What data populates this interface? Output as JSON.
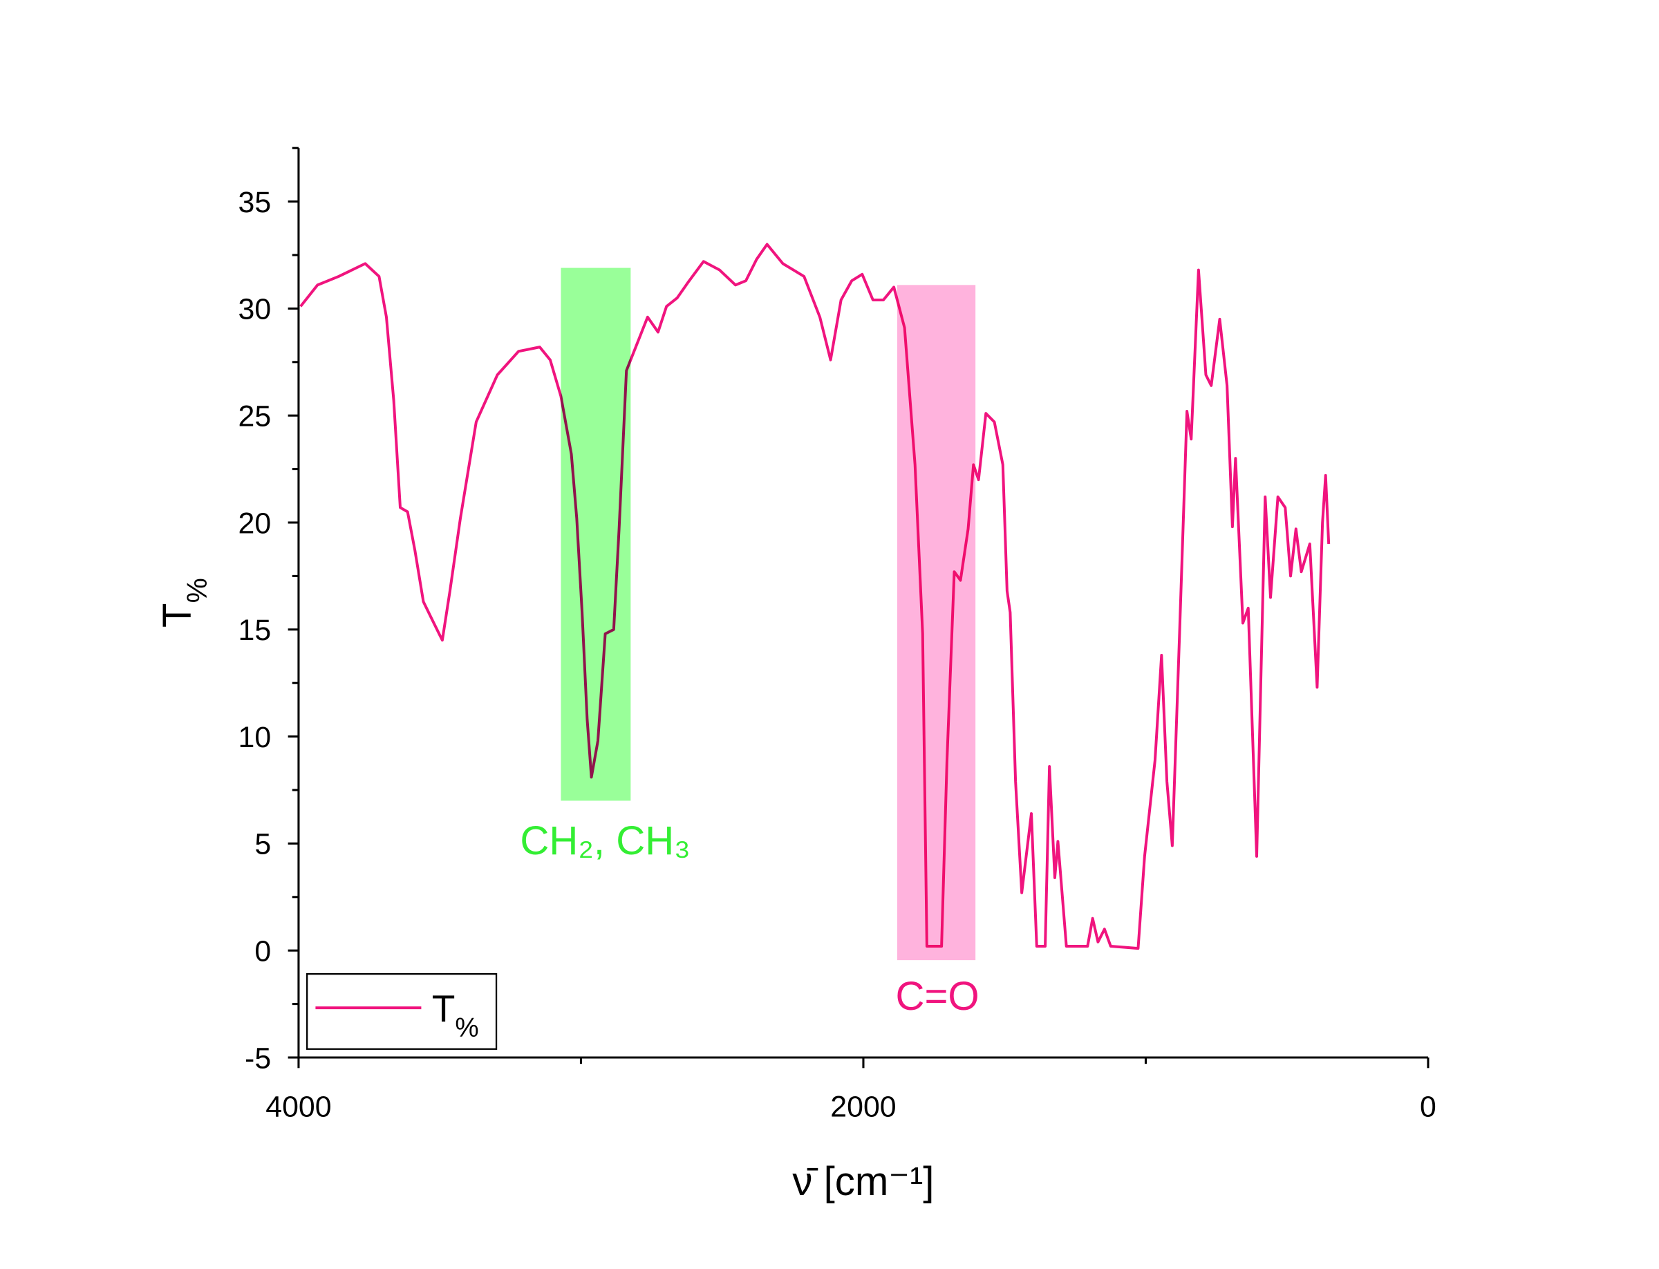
{
  "chart_data": {
    "type": "line",
    "x_label": "ν̄ [cm⁻¹]",
    "y_label": "T%",
    "x": [
      3993,
      3933,
      3858,
      3764,
      3715,
      3689,
      3663,
      3640,
      3614,
      3588,
      3558,
      3521,
      3491,
      3464,
      3427,
      3371,
      3296,
      3221,
      3146,
      3109,
      3071,
      3034,
      3015,
      2996,
      2978,
      2963,
      2940,
      2914,
      2884,
      2865,
      2839,
      2809,
      2764,
      2727,
      2697,
      2659,
      2622,
      2566,
      2509,
      2453,
      2416,
      2378,
      2341,
      2285,
      2210,
      2154,
      2116,
      2079,
      2041,
      2004,
      1966,
      1929,
      1892,
      1854,
      1817,
      1790,
      1775,
      1723,
      1704,
      1678,
      1656,
      1629,
      1610,
      1592,
      1566,
      1536,
      1506,
      1491,
      1480,
      1461,
      1439,
      1405,
      1386,
      1356,
      1341,
      1322,
      1311,
      1281,
      1206,
      1188,
      1169,
      1146,
      1124,
      1027,
      1004,
      967,
      944,
      925,
      906,
      880,
      854,
      839,
      813,
      787,
      768,
      738,
      712,
      693,
      682,
      656,
      637,
      607,
      577,
      558,
      532,
      506,
      487,
      468,
      449,
      419,
      393,
      374,
      363,
      352
    ],
    "series": [
      {
        "name": "T%",
        "color": "#f0147e",
        "values": [
          30.1,
          31.1,
          31.5,
          32.1,
          31.5,
          29.6,
          25.7,
          20.7,
          20.5,
          18.7,
          16.3,
          15.3,
          14.5,
          16.8,
          20.2,
          24.7,
          26.9,
          28.0,
          28.2,
          27.6,
          25.9,
          23.2,
          20.2,
          15.8,
          10.8,
          8.1,
          9.8,
          14.8,
          15.0,
          19.7,
          27.1,
          28.1,
          29.6,
          28.9,
          30.1,
          30.5,
          31.2,
          32.2,
          31.8,
          31.1,
          31.3,
          32.3,
          33.0,
          32.1,
          31.5,
          29.6,
          27.6,
          30.4,
          31.3,
          31.6,
          30.4,
          30.4,
          31.0,
          29.1,
          22.7,
          14.8,
          0.2,
          0.2,
          8.8,
          17.7,
          17.3,
          19.7,
          22.7,
          22.0,
          25.1,
          24.7,
          22.7,
          16.8,
          15.8,
          7.9,
          2.7,
          6.4,
          0.2,
          0.2,
          8.6,
          3.4,
          5.1,
          0.2,
          0.2,
          1.5,
          0.4,
          1.0,
          0.2,
          0.1,
          4.4,
          8.9,
          13.8,
          7.9,
          4.9,
          14.9,
          25.2,
          23.9,
          31.8,
          26.9,
          26.4,
          29.5,
          26.4,
          19.8,
          23.0,
          15.3,
          16.0,
          4.4,
          21.2,
          16.5,
          21.2,
          20.7,
          17.5,
          19.7,
          17.7,
          19.0,
          12.3,
          20.0,
          22.2,
          19.0
        ]
      }
    ],
    "xlim": [
      4000,
      0
    ],
    "xticks": [
      4000,
      2000,
      0
    ],
    "xminorticks": [
      3000,
      1000
    ],
    "ylim": [
      -5,
      37.5
    ],
    "yticks": [
      -5,
      0,
      5,
      10,
      15,
      20,
      25,
      30,
      35
    ],
    "yminorticks": [
      -2.5,
      2.5,
      7.5,
      12.5,
      17.5,
      22.5,
      27.5,
      32.5,
      37.5
    ],
    "legend": "lower left",
    "highlights": [
      {
        "x": [
          3071,
          2824
        ],
        "y": [
          31.9,
          7.0
        ],
        "color": "#99ff99"
      },
      {
        "x": [
          1880,
          1603
        ],
        "y": [
          31.1,
          -0.45
        ],
        "color": "#ffb3dd"
      }
    ],
    "annotations": [
      {
        "text": "CH₂, CH₃",
        "color": "#33ee33"
      },
      {
        "text": "C=O",
        "color": "#f0147e"
      }
    ]
  }
}
